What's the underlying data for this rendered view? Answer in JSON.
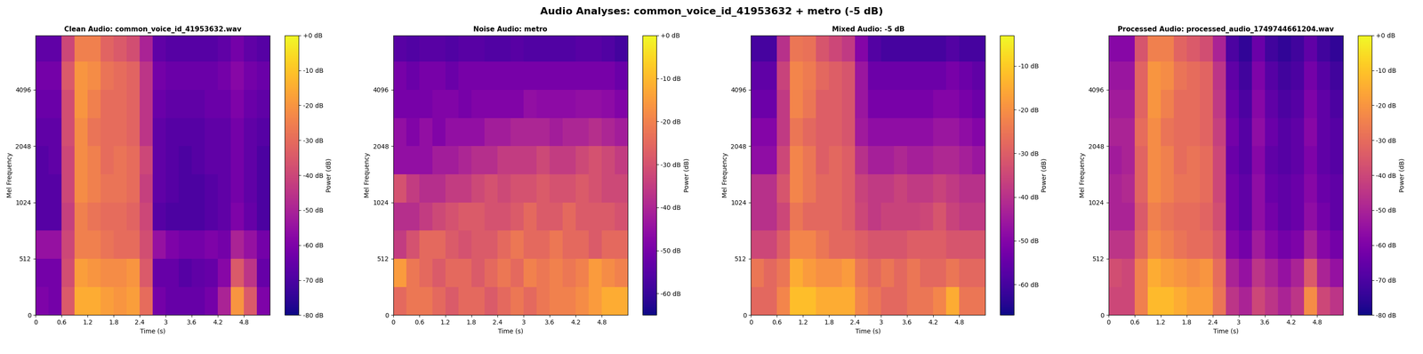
{
  "title": "Audio Analyses: common_voice_id_41953632 + metro (-5 dB)",
  "chart_data": [
    {
      "type": "heatmap",
      "title": "Clean Audio: common_voice_id_41953632.wav",
      "x_label": "Time (s)",
      "y_label": "Mel Frequency",
      "color": "plasma",
      "xlim": [
        0,
        5.4
      ],
      "xticks": [
        0,
        0.6,
        1.2,
        1.8,
        2.4,
        3,
        3.6,
        4.2,
        4.8
      ],
      "ylim": [
        0,
        8000
      ],
      "yticks": [
        0,
        512,
        1024,
        2048,
        4096
      ],
      "x_edges": [
        0,
        0.3,
        0.6,
        0.9,
        1.2,
        1.5,
        1.8,
        2.1,
        2.4,
        2.7,
        3.0,
        3.3,
        3.6,
        3.9,
        4.2,
        4.5,
        4.8,
        5.1,
        5.4
      ],
      "y_edges": [
        0,
        256,
        512,
        724,
        1024,
        1448,
        2048,
        2896,
        4096,
        5793,
        8000
      ],
      "cells": [
        [
          -60,
          -62,
          -35,
          -15,
          -15,
          -18,
          -20,
          -18,
          -30,
          -62,
          -65,
          -65,
          -65,
          -62,
          -50,
          -20,
          -35,
          -60
        ],
        [
          -62,
          -62,
          -38,
          -18,
          -20,
          -22,
          -22,
          -20,
          -35,
          -65,
          -65,
          -68,
          -66,
          -65,
          -58,
          -35,
          -45,
          -65
        ],
        [
          -55,
          -55,
          -40,
          -25,
          -25,
          -28,
          -30,
          -30,
          -38,
          -55,
          -60,
          -62,
          -62,
          -60,
          -62,
          -50,
          -55,
          -62
        ],
        [
          -68,
          -68,
          -42,
          -25,
          -28,
          -30,
          -30,
          -32,
          -40,
          -68,
          -70,
          -70,
          -70,
          -68,
          -66,
          -60,
          -65,
          -70
        ],
        [
          -68,
          -68,
          -40,
          -22,
          -25,
          -28,
          -28,
          -30,
          -42,
          -66,
          -68,
          -70,
          -70,
          -68,
          -66,
          -62,
          -66,
          -70
        ],
        [
          -68,
          -66,
          -40,
          -22,
          -25,
          -30,
          -28,
          -30,
          -40,
          -66,
          -68,
          -70,
          -68,
          -66,
          -66,
          -62,
          -66,
          -70
        ],
        [
          -66,
          -66,
          -38,
          -22,
          -28,
          -30,
          -30,
          -32,
          -45,
          -66,
          -68,
          -68,
          -68,
          -66,
          -66,
          -62,
          -66,
          -68
        ],
        [
          -64,
          -64,
          -38,
          -20,
          -25,
          -30,
          -30,
          -32,
          -45,
          -64,
          -66,
          -66,
          -66,
          -64,
          -64,
          -60,
          -64,
          -66
        ],
        [
          -62,
          -62,
          -35,
          -20,
          -22,
          -28,
          -30,
          -32,
          -45,
          -62,
          -64,
          -64,
          -64,
          -64,
          -62,
          -58,
          -62,
          -64
        ],
        [
          -66,
          -66,
          -40,
          -25,
          -25,
          -32,
          -35,
          -38,
          -50,
          -66,
          -68,
          -68,
          -68,
          -68,
          -66,
          -62,
          -66,
          -68
        ]
      ],
      "color_label": "Power (dB)",
      "color_range": [
        -80,
        0
      ],
      "color_ticks": [
        {
          "value": 0,
          "label": "+0 dB"
        },
        {
          "value": -10,
          "label": "-10 dB"
        },
        {
          "value": -20,
          "label": "-20 dB"
        },
        {
          "value": -30,
          "label": "-30 dB"
        },
        {
          "value": -40,
          "label": "-40 dB"
        },
        {
          "value": -50,
          "label": "-50 dB"
        },
        {
          "value": -60,
          "label": "-60 dB"
        },
        {
          "value": -70,
          "label": "-70 dB"
        },
        {
          "value": -80,
          "label": "-80 dB"
        }
      ]
    },
    {
      "type": "heatmap",
      "title": "Noise Audio: metro",
      "x_label": "Time (s)",
      "y_label": "Mel Frequency",
      "color": "plasma",
      "xlim": [
        0,
        5.4
      ],
      "xticks": [
        0,
        0.6,
        1.2,
        1.8,
        2.4,
        3,
        3.6,
        4.2,
        4.8
      ],
      "ylim": [
        0,
        8000
      ],
      "yticks": [
        0,
        512,
        1024,
        2048,
        4096
      ],
      "x_edges": [
        0,
        0.3,
        0.6,
        0.9,
        1.2,
        1.5,
        1.8,
        2.1,
        2.4,
        2.7,
        3.0,
        3.3,
        3.6,
        3.9,
        4.2,
        4.5,
        4.8,
        5.1,
        5.4
      ],
      "y_edges": [
        0,
        256,
        512,
        724,
        1024,
        1448,
        2048,
        2896,
        4096,
        5793,
        8000
      ],
      "cells": [
        [
          -25,
          -22,
          -22,
          -25,
          -28,
          -25,
          -25,
          -28,
          -25,
          -22,
          -25,
          -22,
          -20,
          -20,
          -18,
          -15,
          -12,
          -12
        ],
        [
          -15,
          -22,
          -25,
          -28,
          -25,
          -25,
          -28,
          -25,
          -22,
          -25,
          -20,
          -22,
          -20,
          -22,
          -20,
          -15,
          -18,
          -20
        ],
        [
          -35,
          -30,
          -25,
          -25,
          -28,
          -30,
          -28,
          -28,
          -25,
          -22,
          -25,
          -25,
          -22,
          -25,
          -25,
          -28,
          -25,
          -25
        ],
        [
          -38,
          -38,
          -35,
          -32,
          -30,
          -28,
          -28,
          -30,
          -30,
          -28,
          -25,
          -28,
          -28,
          -25,
          -28,
          -28,
          -28,
          -30
        ],
        [
          -30,
          -35,
          -38,
          -38,
          -35,
          -35,
          -32,
          -30,
          -32,
          -30,
          -30,
          -28,
          -30,
          -30,
          -28,
          -30,
          -32,
          -32
        ],
        [
          -45,
          -45,
          -45,
          -42,
          -42,
          -40,
          -38,
          -38,
          -35,
          -35,
          -35,
          -32,
          -35,
          -35,
          -32,
          -30,
          -32,
          -35
        ],
        [
          -45,
          -48,
          -45,
          -48,
          -45,
          -45,
          -45,
          -42,
          -42,
          -40,
          -40,
          -40,
          -42,
          -40,
          -40,
          -38,
          -40,
          -42
        ],
        [
          -50,
          -50,
          -50,
          -48,
          -48,
          -50,
          -48,
          -48,
          -48,
          -48,
          -45,
          -46,
          -46,
          -46,
          -45,
          -45,
          -46,
          -48
        ],
        [
          -50,
          -52,
          -50,
          -50,
          -52,
          -50,
          -50,
          -50,
          -50,
          -50,
          -50,
          -50,
          -50,
          -50,
          -50,
          -50,
          -50,
          -52
        ],
        [
          -55,
          -56,
          -55,
          -55,
          -56,
          -55,
          -55,
          -56,
          -56,
          -55,
          -56,
          -56,
          -56,
          -56,
          -55,
          -55,
          -56,
          -58
        ]
      ],
      "color_label": "Power (dB)",
      "color_range": [
        -65,
        0
      ],
      "color_ticks": [
        {
          "value": 0,
          "label": "+0 dB"
        },
        {
          "value": -10,
          "label": "-10 dB"
        },
        {
          "value": -20,
          "label": "-20 dB"
        },
        {
          "value": -30,
          "label": "-30 dB"
        },
        {
          "value": -40,
          "label": "-40 dB"
        },
        {
          "value": -50,
          "label": "-50 dB"
        },
        {
          "value": -60,
          "label": "-60 dB"
        }
      ]
    },
    {
      "type": "heatmap",
      "title": "Mixed Audio: -5 dB",
      "x_label": "Time (s)",
      "y_label": "Mel Frequency",
      "color": "plasma",
      "xlim": [
        0,
        5.4
      ],
      "xticks": [
        0,
        0.6,
        1.2,
        1.8,
        2.4,
        3,
        3.6,
        4.2,
        4.8
      ],
      "ylim": [
        0,
        8000
      ],
      "yticks": [
        0,
        512,
        1024,
        2048,
        4096
      ],
      "x_edges": [
        0,
        0.3,
        0.6,
        0.9,
        1.2,
        1.5,
        1.8,
        2.1,
        2.4,
        2.7,
        3.0,
        3.3,
        3.6,
        3.9,
        4.2,
        4.5,
        4.8,
        5.1,
        5.4
      ],
      "y_edges": [
        0,
        256,
        512,
        724,
        1024,
        1448,
        2048,
        2896,
        4096,
        5793,
        8000
      ],
      "cells": [
        [
          -28,
          -28,
          -22,
          -12,
          -12,
          -15,
          -15,
          -15,
          -22,
          -25,
          -28,
          -28,
          -25,
          -25,
          -22,
          -15,
          -25,
          -25
        ],
        [
          -25,
          -28,
          -25,
          -15,
          -18,
          -20,
          -20,
          -18,
          -25,
          -28,
          -25,
          -28,
          -25,
          -28,
          -28,
          -25,
          -28,
          -28
        ],
        [
          -35,
          -35,
          -30,
          -22,
          -22,
          -25,
          -28,
          -28,
          -30,
          -32,
          -32,
          -32,
          -30,
          -30,
          -30,
          -32,
          -32,
          -32
        ],
        [
          -40,
          -40,
          -35,
          -25,
          -28,
          -28,
          -28,
          -30,
          -35,
          -38,
          -36,
          -36,
          -36,
          -35,
          -32,
          -36,
          -38,
          -38
        ],
        [
          -40,
          -40,
          -32,
          -22,
          -25,
          -28,
          -28,
          -30,
          -36,
          -38,
          -38,
          -36,
          -38,
          -38,
          -36,
          -38,
          -40,
          -40
        ],
        [
          -48,
          -48,
          -35,
          -22,
          -25,
          -30,
          -28,
          -30,
          -40,
          -44,
          -44,
          -42,
          -44,
          -44,
          -42,
          -42,
          -44,
          -46
        ],
        [
          -50,
          -50,
          -38,
          -25,
          -28,
          -30,
          -30,
          -32,
          -45,
          -48,
          -48,
          -48,
          -48,
          -48,
          -46,
          -46,
          -48,
          -50
        ],
        [
          -54,
          -54,
          -38,
          -22,
          -25,
          -30,
          -30,
          -32,
          -46,
          -52,
          -52,
          -52,
          -52,
          -52,
          -50,
          -50,
          -52,
          -54
        ],
        [
          -56,
          -56,
          -36,
          -22,
          -24,
          -28,
          -30,
          -32,
          -46,
          -54,
          -54,
          -54,
          -54,
          -54,
          -54,
          -52,
          -54,
          -56
        ],
        [
          -60,
          -60,
          -40,
          -25,
          -26,
          -32,
          -35,
          -38,
          -50,
          -58,
          -60,
          -60,
          -60,
          -60,
          -60,
          -58,
          -60,
          -60
        ]
      ],
      "color_label": "Power (dB)",
      "color_range": [
        -67,
        -3
      ],
      "color_ticks": [
        {
          "value": -10,
          "label": "-10 dB"
        },
        {
          "value": -20,
          "label": "-20 dB"
        },
        {
          "value": -30,
          "label": "-30 dB"
        },
        {
          "value": -40,
          "label": "-40 dB"
        },
        {
          "value": -50,
          "label": "-50 dB"
        },
        {
          "value": -60,
          "label": "-60 dB"
        }
      ]
    },
    {
      "type": "heatmap",
      "title": "Processed Audio: processed_audio_1749744661204.wav",
      "x_label": "Time (s)",
      "y_label": "Mel Frequency",
      "color": "plasma",
      "xlim": [
        0,
        5.4
      ],
      "xticks": [
        0,
        0.6,
        1.2,
        1.8,
        2.4,
        3,
        3.6,
        4.2,
        4.8
      ],
      "ylim": [
        0,
        8000
      ],
      "yticks": [
        0,
        512,
        1024,
        2048,
        4096
      ],
      "x_edges": [
        0,
        0.3,
        0.6,
        0.9,
        1.2,
        1.5,
        1.8,
        2.1,
        2.4,
        2.7,
        3.0,
        3.3,
        3.6,
        3.9,
        4.2,
        4.5,
        4.8,
        5.1,
        5.4
      ],
      "y_edges": [
        0,
        256,
        512,
        724,
        1024,
        1448,
        2048,
        2896,
        4096,
        5793,
        8000
      ],
      "cells": [
        [
          -40,
          -40,
          -25,
          -12,
          -12,
          -15,
          -18,
          -18,
          -28,
          -45,
          -50,
          -40,
          -45,
          -50,
          -45,
          -22,
          -40,
          -45
        ],
        [
          -38,
          -40,
          -25,
          -15,
          -18,
          -20,
          -22,
          -20,
          -30,
          -50,
          -55,
          -45,
          -50,
          -55,
          -50,
          -35,
          -50,
          -55
        ],
        [
          -45,
          -45,
          -32,
          -22,
          -25,
          -28,
          -30,
          -30,
          -35,
          -58,
          -62,
          -52,
          -58,
          -62,
          -60,
          -50,
          -58,
          -62
        ],
        [
          -50,
          -50,
          -35,
          -25,
          -28,
          -30,
          -30,
          -32,
          -38,
          -62,
          -66,
          -56,
          -62,
          -66,
          -64,
          -56,
          -62,
          -66
        ],
        [
          -50,
          -48,
          -32,
          -22,
          -25,
          -28,
          -28,
          -30,
          -40,
          -62,
          -66,
          -56,
          -64,
          -66,
          -64,
          -58,
          -64,
          -66
        ],
        [
          -52,
          -50,
          -32,
          -22,
          -25,
          -30,
          -28,
          -30,
          -40,
          -64,
          -68,
          -58,
          -66,
          -68,
          -66,
          -60,
          -66,
          -68
        ],
        [
          -50,
          -50,
          -30,
          -22,
          -28,
          -30,
          -30,
          -32,
          -42,
          -62,
          -68,
          -56,
          -64,
          -68,
          -66,
          -58,
          -66,
          -68
        ],
        [
          -52,
          -52,
          -32,
          -20,
          -25,
          -30,
          -30,
          -32,
          -44,
          -64,
          -70,
          -58,
          -66,
          -70,
          -68,
          -60,
          -66,
          -70
        ],
        [
          -54,
          -54,
          -32,
          -20,
          -22,
          -28,
          -30,
          -32,
          -45,
          -66,
          -72,
          -60,
          -68,
          -72,
          -70,
          -62,
          -68,
          -72
        ],
        [
          -58,
          -58,
          -36,
          -25,
          -25,
          -32,
          -35,
          -38,
          -50,
          -70,
          -75,
          -64,
          -72,
          -75,
          -72,
          -66,
          -72,
          -75
        ]
      ],
      "color_label": "Power (dB)",
      "color_range": [
        -80,
        0
      ],
      "color_ticks": [
        {
          "value": 0,
          "label": "+0 dB"
        },
        {
          "value": -10,
          "label": "-10 dB"
        },
        {
          "value": -20,
          "label": "-20 dB"
        },
        {
          "value": -30,
          "label": "-30 dB"
        },
        {
          "value": -40,
          "label": "-40 dB"
        },
        {
          "value": -50,
          "label": "-50 dB"
        },
        {
          "value": -60,
          "label": "-60 dB"
        },
        {
          "value": -70,
          "label": "-70 dB"
        },
        {
          "value": -80,
          "label": "-80 dB"
        }
      ]
    }
  ]
}
